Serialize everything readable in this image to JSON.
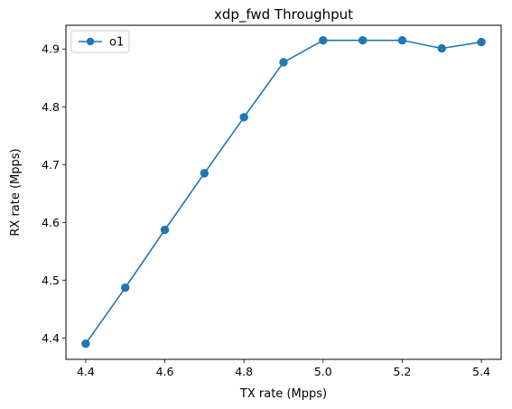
{
  "chart_data": {
    "type": "line",
    "title": "xdp_fwd Throughput",
    "xlabel": "TX rate (Mpps)",
    "ylabel": "RX rate (Mpps)",
    "xlim": [
      4.35,
      5.45
    ],
    "ylim": [
      4.363,
      4.941
    ],
    "xticks": [
      4.4,
      4.6,
      4.8,
      5.0,
      5.2,
      5.4
    ],
    "yticks": [
      4.4,
      4.5,
      4.6,
      4.7,
      4.8,
      4.9
    ],
    "grid": false,
    "legend_position": "top-left",
    "series": [
      {
        "name": "o1",
        "color": "#1f77b4",
        "marker": "circle",
        "x": [
          4.4,
          4.5,
          4.6,
          4.7,
          4.8,
          4.9,
          5.0,
          5.1,
          5.2,
          5.3,
          5.4
        ],
        "y": [
          4.39,
          4.487,
          4.587,
          4.685,
          4.782,
          4.877,
          4.915,
          4.915,
          4.915,
          4.901,
          4.912
        ]
      }
    ]
  }
}
